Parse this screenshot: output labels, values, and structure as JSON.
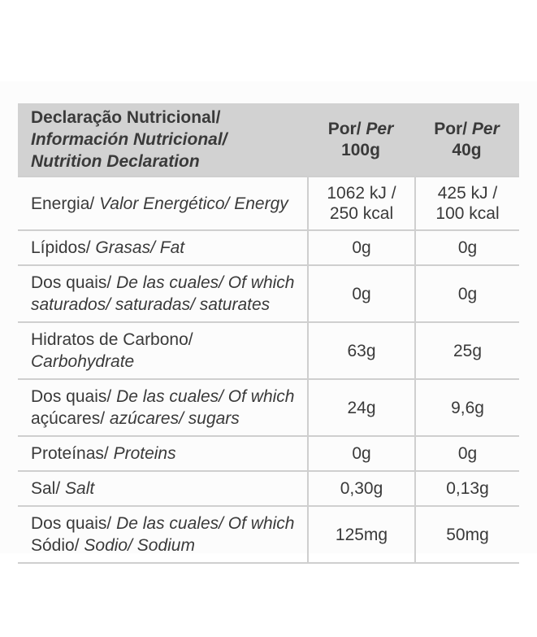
{
  "colors": {
    "header_bg": "#d2d2d2",
    "text": "#3a3a3a",
    "line": "#cfcfcf",
    "page_bg": "#ffffff",
    "band_bg": "#fcfcfc"
  },
  "header": {
    "title_segments": [
      {
        "t": "Declaração Nutricional/"
      },
      {
        "br": true
      },
      {
        "t": "Información Nutricional/",
        "i": true
      },
      {
        "br": true
      },
      {
        "t": "Nutrition Declaration",
        "i": true
      }
    ],
    "per100g_segments": [
      {
        "t": "Por/ "
      },
      {
        "t": "Per",
        "i": true
      },
      {
        "br": true
      },
      {
        "t": "100g"
      }
    ],
    "per40g_segments": [
      {
        "t": "Por/ "
      },
      {
        "t": "Per",
        "i": true
      },
      {
        "br": true
      },
      {
        "t": "40g"
      }
    ]
  },
  "rows": [
    {
      "name": "energy",
      "label": [
        {
          "t": "Energia/ "
        },
        {
          "t": "Valor Energético/ Energy",
          "i": true
        }
      ],
      "per100g": [
        "1062 kJ /",
        "250 kcal"
      ],
      "per40g": [
        "425 kJ /",
        "100 kcal"
      ]
    },
    {
      "name": "fat",
      "label": [
        {
          "t": "Lípidos/ "
        },
        {
          "t": "Grasas/ Fat",
          "i": true
        }
      ],
      "per100g": [
        "0g"
      ],
      "per40g": [
        "0g"
      ]
    },
    {
      "name": "saturates",
      "label": [
        {
          "t": "Dos quais/ "
        },
        {
          "t": "De las cuales/ Of which",
          "i": true
        },
        {
          "br": true
        },
        {
          "t": "saturados/ saturadas/ saturates",
          "i": true
        }
      ],
      "per100g": [
        "0g"
      ],
      "per40g": [
        "0g"
      ]
    },
    {
      "name": "carbohydrate",
      "label": [
        {
          "t": "Hidratos de Carbono/ "
        },
        {
          "t": "Carbohydrate",
          "i": true
        }
      ],
      "per100g": [
        "63g"
      ],
      "per40g": [
        "25g"
      ]
    },
    {
      "name": "sugars",
      "label": [
        {
          "t": "Dos quais/ "
        },
        {
          "t": "De las cuales/ Of which",
          "i": true
        },
        {
          "br": true
        },
        {
          "t": "açúcares/ "
        },
        {
          "t": "azúcares/ sugars",
          "i": true
        }
      ],
      "per100g": [
        "24g"
      ],
      "per40g": [
        "9,6g"
      ]
    },
    {
      "name": "protein",
      "label": [
        {
          "t": "Proteínas/ "
        },
        {
          "t": "Proteins",
          "i": true
        }
      ],
      "per100g": [
        "0g"
      ],
      "per40g": [
        "0g"
      ]
    },
    {
      "name": "salt",
      "label": [
        {
          "t": "Sal/ "
        },
        {
          "t": "Salt",
          "i": true
        }
      ],
      "per100g": [
        "0,30g"
      ],
      "per40g": [
        "0,13g"
      ]
    },
    {
      "name": "sodium",
      "label": [
        {
          "t": "Dos quais/ "
        },
        {
          "t": "De las cuales/ Of which",
          "i": true
        },
        {
          "br": true
        },
        {
          "t": "Sódio/ "
        },
        {
          "t": "Sodio/ Sodium",
          "i": true
        }
      ],
      "per100g": [
        "125mg"
      ],
      "per40g": [
        "50mg"
      ]
    }
  ]
}
